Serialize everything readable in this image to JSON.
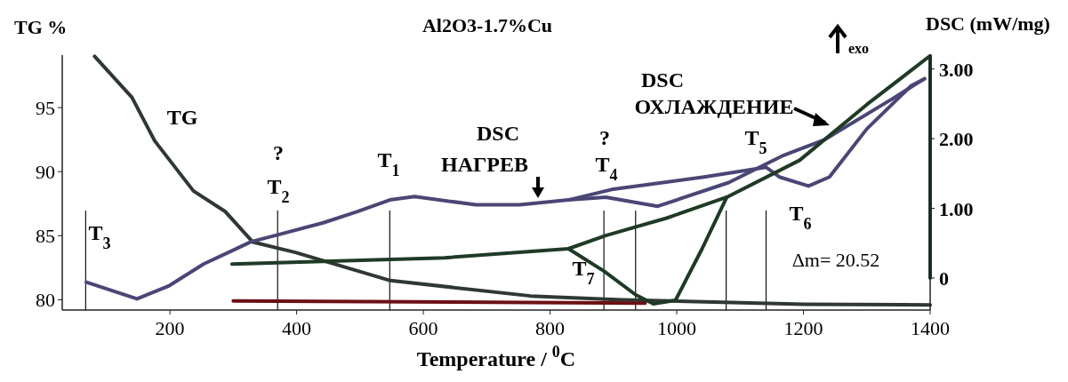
{
  "chart_data": {
    "type": "line",
    "title": "Al2O3-1.7%Cu",
    "xlabel": "Temperature / $^{0}$C",
    "ylabel": "TG %",
    "y2label": "DSC (mW/mg)",
    "xlim": [
      30,
      1400
    ],
    "xticks": [
      200,
      400,
      600,
      800,
      1000,
      1200,
      1400
    ],
    "ylim": [
      79.2,
      99.1
    ],
    "yticks": [
      80,
      85,
      90,
      95
    ],
    "y2lim": [
      -0.46,
      3.2
    ],
    "y2ticks": [
      {
        "value": 0,
        "label": "0"
      },
      {
        "value": 1,
        "label": "1.00"
      },
      {
        "value": 2,
        "label": "2.00"
      },
      {
        "value": 3,
        "label": "3.00"
      }
    ],
    "grid": false,
    "marker": "none",
    "line_style": "solid",
    "series": [
      {
        "color": "#2f3833",
        "x": [
          81,
          140,
          176,
          237,
          287,
          331,
          398,
          548,
          769,
          913,
          1200,
          1400
        ],
        "values": [
          99.0,
          95.8,
          92.4,
          88.5,
          86.9,
          84.5,
          83.7,
          81.5,
          80.3,
          80.0,
          79.65,
          79.6
        ]
      },
      {
        "color": "#4a4675",
        "axis": "y2",
        "x": [
          68,
          148,
          199,
          253,
          328,
          370,
          441,
          495,
          547,
          586,
          683,
          752,
          829,
          888,
          970,
          1082,
          1166,
          1232,
          1340,
          1391
        ],
        "values": [
          -0.06,
          -0.3,
          -0.11,
          0.2,
          0.52,
          0.62,
          0.79,
          0.95,
          1.12,
          1.17,
          1.05,
          1.05,
          1.12,
          1.16,
          1.03,
          1.37,
          1.75,
          1.98,
          2.57,
          2.86
        ]
      },
      {
        "color": "#4a4675",
        "axis": "y2",
        "x": [
          829,
          897,
          1043,
          1141,
          1162,
          1208,
          1241,
          1300,
          1370,
          1391
        ],
        "values": [
          1.12,
          1.27,
          1.45,
          1.59,
          1.45,
          1.32,
          1.45,
          2.14,
          2.76,
          2.86
        ]
      },
      {
        "color": "#1f3a25",
        "axis": "y2",
        "x": [
          298,
          633,
          829,
          888,
          984,
          1079,
          1194,
          1300,
          1400,
          1400
        ],
        "values": [
          0.2,
          0.29,
          0.42,
          0.61,
          0.86,
          1.16,
          1.69,
          2.49,
          3.19,
          0
        ]
      },
      {
        "color": "#1f3a25",
        "axis": "y2",
        "x": [
          829,
          885,
          935,
          963,
          998,
          1040,
          1079
        ],
        "values": [
          0.42,
          0.1,
          -0.24,
          -0.37,
          -0.32,
          0.42,
          1.16
        ]
      },
      {
        "color": "#6b1016",
        "axis": "y2",
        "x": [
          300,
          950
        ],
        "values": [
          -0.33,
          -0.36
        ]
      }
    ],
    "ref_lines": [
      {
        "axis": "x",
        "value": 67
      },
      {
        "axis": "x",
        "value": 370
      },
      {
        "axis": "x",
        "value": 547
      },
      {
        "axis": "x",
        "value": 885
      },
      {
        "axis": "x",
        "value": 935
      },
      {
        "axis": "x",
        "value": 1078
      },
      {
        "axis": "x",
        "value": 1141
      }
    ],
    "annotations": [
      "TG",
      "?",
      "T$_{2}$",
      "T$_{1}$",
      "DSC",
      "НАГРЕВ",
      "?",
      "T$_{4}$",
      "DSC",
      "ОХЛАЖДЕНИЕ",
      "T$_{5}$",
      "T$_{6}$",
      "T$_{7}$",
      "T$_{3}$",
      "Δm= 20.52",
      "exo"
    ]
  }
}
